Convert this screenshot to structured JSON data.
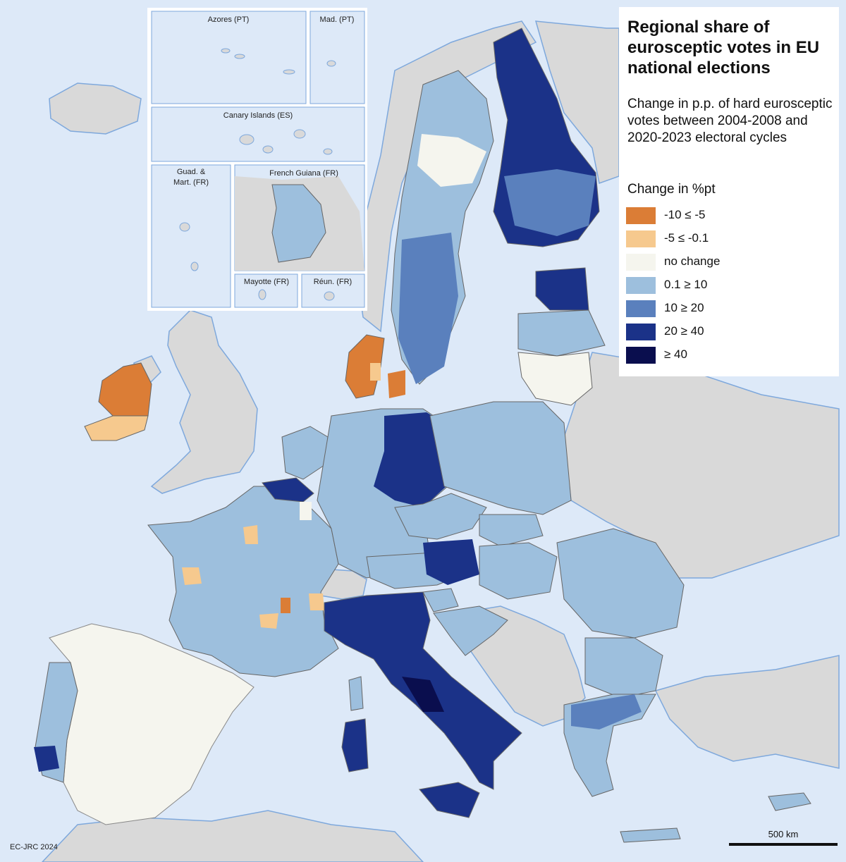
{
  "map": {
    "title": "Regional share of eurosceptic votes in EU national elections",
    "subtitle": "Change in p.p. of hard eurosceptic votes between 2004-2008 and 2020-2023 electoral cycles",
    "credit": "EC-JRC 2024",
    "scale_label": "500 km"
  },
  "legend": {
    "heading": "Change in %pt",
    "items": [
      {
        "label": "-10 ≤ -5",
        "color": "#db7d36"
      },
      {
        "label": "-5 ≤ -0.1",
        "color": "#f6c98e"
      },
      {
        "label": "no change",
        "color": "#f5f5ee"
      },
      {
        "label": "0.1 ≥ 10",
        "color": "#9dbfdd"
      },
      {
        "label": "10 ≥ 20",
        "color": "#5a80bd"
      },
      {
        "label": "20 ≥ 40",
        "color": "#1b3288"
      },
      {
        "label": "≥ 40",
        "color": "#0a0e4e"
      }
    ]
  },
  "insets": {
    "azores": "Azores (PT)",
    "madeira": "Mad. (PT)",
    "canary": "Canary Islands (ES)",
    "guadeloupe": "Guad. & Mart. (FR)",
    "guadeloupe_line1": "Guad. &",
    "guadeloupe_line2": "Mart. (FR)",
    "guiana": "French Guiana (FR)",
    "mayotte": "Mayotte (FR)",
    "reunion": "Réun. (FR)"
  },
  "colors": {
    "sea": "#dde9f8",
    "non_eu_land": "#d9d9d9",
    "coast": "#6f9fd8",
    "border": "#555555"
  }
}
